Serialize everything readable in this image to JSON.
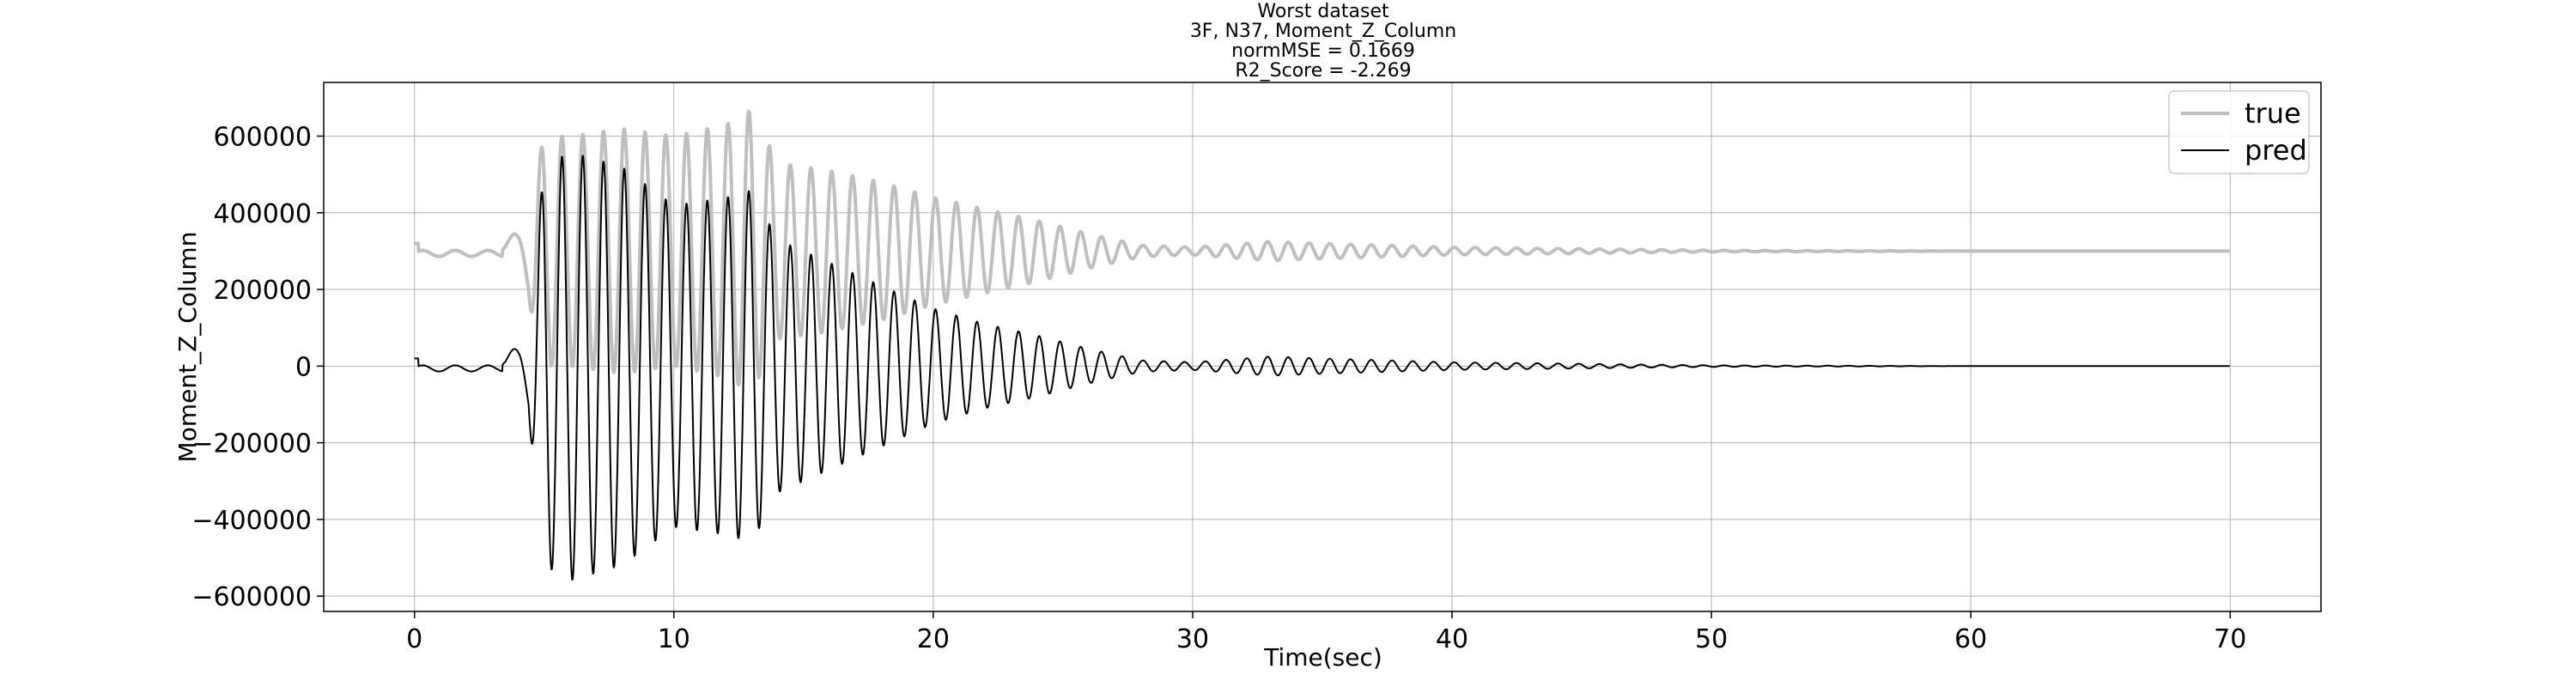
{
  "chart_data": {
    "type": "line",
    "title_lines": [
      "Worst dataset",
      "3F, N37, Moment_Z_Column",
      "normMSE = 0.1669",
      "R2_Score = -2.269"
    ],
    "xlabel": "Time(sec)",
    "ylabel": "Moment_Z_Column",
    "xlim": [
      -3.5,
      73.5
    ],
    "ylim": [
      -640000,
      740000
    ],
    "xticks": [
      0,
      10,
      20,
      30,
      40,
      50,
      60,
      70
    ],
    "xtick_labels": [
      "0",
      "10",
      "20",
      "30",
      "40",
      "50",
      "60",
      "70"
    ],
    "yticks": [
      -600000,
      -400000,
      -200000,
      0,
      200000,
      400000,
      600000
    ],
    "ytick_labels": [
      "−600000",
      "−400000",
      "−200000",
      "0",
      "200000",
      "400000",
      "600000"
    ],
    "grid": true,
    "legend_position": "top-right",
    "series": [
      {
        "name": "true",
        "color": "#bfbfbf",
        "offset": 300000,
        "x": [
          0,
          1,
          2,
          3,
          3.5,
          4,
          4.4,
          5,
          6,
          8,
          10,
          12,
          13,
          14,
          16,
          18,
          20,
          22,
          24,
          26,
          27,
          28,
          30,
          33,
          35,
          40,
          45,
          50,
          55,
          60,
          65,
          70
        ],
        "amplitude": [
          0,
          0,
          0,
          0,
          20000,
          60000,
          130000,
          300000,
          300000,
          320000,
          300000,
          330000,
          370000,
          230000,
          210000,
          180000,
          140000,
          110000,
          80000,
          45000,
          30000,
          15000,
          10000,
          25000,
          20000,
          10000,
          6000,
          2000,
          1000,
          0,
          0,
          0
        ]
      },
      {
        "name": "pred",
        "color": "#000000",
        "offset": 0,
        "x": [
          0,
          1,
          2,
          3,
          3.5,
          4,
          4.4,
          5,
          6,
          8,
          10,
          12,
          13,
          14,
          16,
          18,
          20,
          22,
          24,
          26,
          27,
          28,
          30,
          33,
          35,
          40,
          45,
          50,
          55,
          60,
          65,
          70
        ],
        "amplitude": [
          0,
          0,
          0,
          0,
          20000,
          60000,
          130000,
          520000,
          560000,
          520000,
          420000,
          440000,
          460000,
          330000,
          270000,
          210000,
          150000,
          110000,
          80000,
          45000,
          30000,
          15000,
          10000,
          25000,
          20000,
          10000,
          6000,
          2000,
          1000,
          0,
          0,
          0
        ]
      }
    ]
  }
}
